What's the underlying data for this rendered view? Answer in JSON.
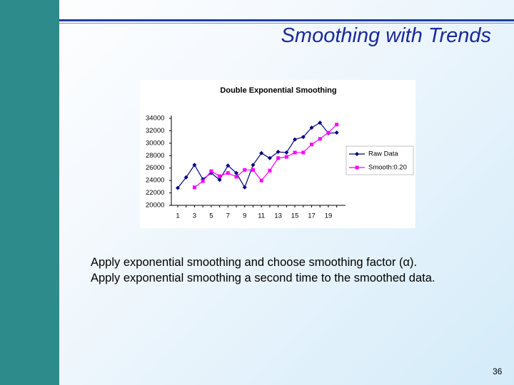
{
  "slide": {
    "title": "Smoothing with Trends",
    "body": [
      "Apply exponential smoothing and choose smoothing factor (α).",
      "Apply exponential smoothing a second time to the smoothed data."
    ],
    "page_number": "36"
  },
  "chart_data": {
    "type": "line",
    "title": "Double Exponential Smoothing",
    "categories": [
      "1",
      null,
      "3",
      null,
      "5",
      null,
      "7",
      null,
      "9",
      null,
      "11",
      null,
      "13",
      null,
      "15",
      null,
      "17",
      null,
      "19",
      null
    ],
    "series": [
      {
        "name": "Raw Data",
        "color": "#000080",
        "marker": "diamond",
        "values": [
          22800,
          24500,
          26500,
          24200,
          25200,
          24100,
          26400,
          25200,
          22900,
          26500,
          28400,
          27600,
          28600,
          28500,
          30600,
          31000,
          32500,
          33300,
          31600,
          31700
        ]
      },
      {
        "name": "Smooth:0.20",
        "color": "#ff00ff",
        "marker": "square",
        "values": [
          null,
          null,
          22900,
          23900,
          25500,
          24700,
          25200,
          24600,
          25700,
          25700,
          24000,
          25600,
          27600,
          27800,
          28500,
          28500,
          29800,
          30700,
          31700,
          33000
        ]
      }
    ],
    "ylim": [
      20000,
      34000
    ],
    "yticks": [
      20000,
      22000,
      24000,
      26000,
      28000,
      30000,
      32000,
      34000
    ],
    "grid": false,
    "legend": "right"
  }
}
